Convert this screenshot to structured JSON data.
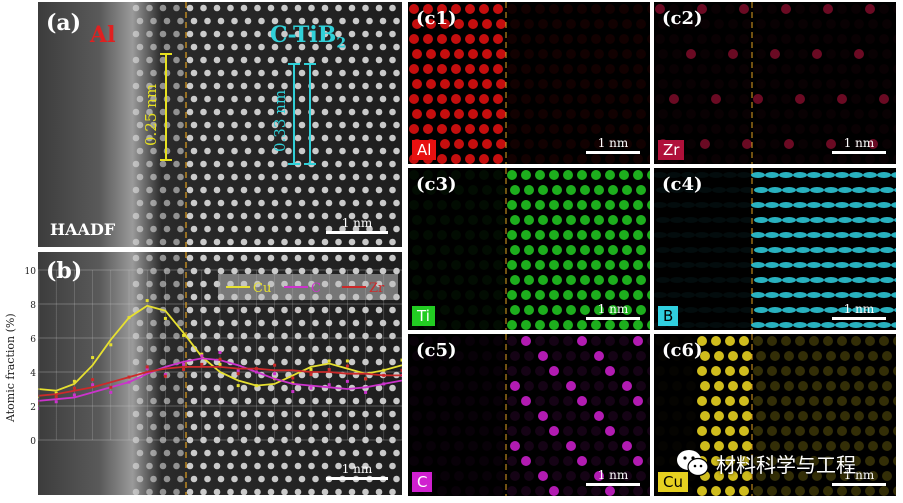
{
  "panel_a": {
    "label": "(a)",
    "left_phase": "Al",
    "right_phase": "C-TiB",
    "right_phase_sub": "2",
    "spacing_left": "0.25 nm",
    "spacing_right": "0.33 nm",
    "mode": "HAADF",
    "scale": "1 nm"
  },
  "panel_b": {
    "label": "(b)",
    "scale": "1 nm"
  },
  "maps": [
    {
      "id": "c1",
      "label": "(c1)",
      "element": "Al",
      "scale": "1 nm",
      "color": "#e81010"
    },
    {
      "id": "c2",
      "label": "(c2)",
      "element": "Zr",
      "scale": "1 nm",
      "color": "#b0103a"
    },
    {
      "id": "c3",
      "label": "(c3)",
      "element": "Ti",
      "scale": "1 nm",
      "color": "#22cc22"
    },
    {
      "id": "c4",
      "label": "(c4)",
      "element": "B",
      "scale": "1 nm",
      "color": "#30d0e0"
    },
    {
      "id": "c5",
      "label": "(c5)",
      "element": "C",
      "scale": "1 nm",
      "color": "#d020d0"
    },
    {
      "id": "c6",
      "label": "(c6)",
      "element": "Cu",
      "scale": "1 nm",
      "color": "#e6d020"
    }
  ],
  "watermark": {
    "text": "材料科学与工程",
    "icon": "wechat-icon"
  },
  "chart_data": {
    "type": "line",
    "xlabel": "",
    "ylabel": "Atomic fraction (%)",
    "ylim": [
      0,
      10
    ],
    "yticks": [
      "0",
      "2",
      "4",
      "6",
      "8",
      "10"
    ],
    "xlim": [
      0,
      100
    ],
    "grid": true,
    "legend_position": "top-right",
    "series": [
      {
        "name": "Cu",
        "color": "#e6e030",
        "x": [
          0,
          5,
          10,
          15,
          20,
          25,
          30,
          35,
          40,
          45,
          50,
          55,
          60,
          65,
          70,
          75,
          80,
          85,
          90,
          95,
          100
        ],
        "values": [
          3.0,
          2.9,
          3.3,
          4.4,
          5.9,
          7.2,
          7.9,
          7.6,
          6.3,
          4.9,
          4.0,
          3.5,
          3.2,
          3.3,
          3.8,
          4.3,
          4.5,
          4.2,
          3.9,
          4.1,
          4.4
        ]
      },
      {
        "name": "C",
        "color": "#cc33cc",
        "x": [
          0,
          5,
          10,
          15,
          20,
          25,
          30,
          35,
          40,
          45,
          50,
          55,
          60,
          65,
          70,
          75,
          80,
          85,
          90,
          95,
          100
        ],
        "values": [
          2.3,
          2.4,
          2.5,
          2.8,
          3.1,
          3.4,
          3.9,
          4.3,
          4.6,
          4.8,
          4.7,
          4.4,
          4.0,
          3.6,
          3.3,
          3.2,
          3.1,
          3.0,
          3.1,
          3.3,
          3.5
        ]
      },
      {
        "name": "Zr",
        "color": "#cc2a2a",
        "x": [
          0,
          5,
          10,
          15,
          20,
          25,
          30,
          35,
          40,
          45,
          50,
          55,
          60,
          65,
          70,
          75,
          80,
          85,
          90,
          95,
          100
        ],
        "values": [
          2.6,
          2.7,
          2.9,
          3.1,
          3.4,
          3.7,
          4.0,
          4.2,
          4.3,
          4.3,
          4.3,
          4.2,
          4.2,
          4.1,
          4.1,
          4.0,
          4.0,
          3.9,
          3.9,
          3.8,
          3.8
        ]
      }
    ]
  }
}
